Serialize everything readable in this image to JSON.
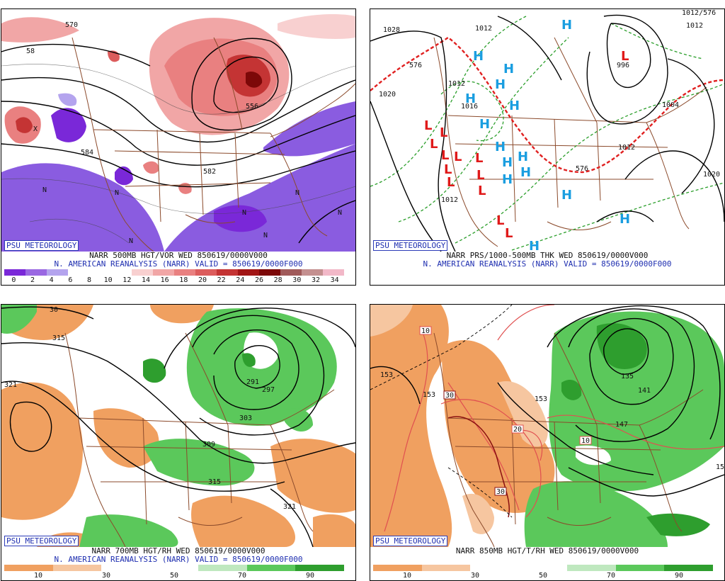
{
  "credit": "PSU METEOROLOGY",
  "colors": {
    "vort_scale": [
      "#7a28d8",
      "#9a68e2",
      "#b4a4ee",
      "#ffffff",
      "#ffffff",
      "#ffffff",
      "#f8d0d0",
      "#f1a6a6",
      "#e98080",
      "#dc5c5c",
      "#c43434",
      "#a21616",
      "#7c0808",
      "#a05a5a",
      "#c49090",
      "#f2b8c8"
    ],
    "brown_scale": [
      "#f0a060",
      "#f6c6a0",
      "#ffffff",
      "#ffffff",
      "#bfe8bf",
      "#5bc85b",
      "#2e9e2e"
    ]
  },
  "panels": [
    {
      "id": "vorticity",
      "caption1": "NARR 500MB HGT/VOR WED 850619/0000V000",
      "caption2": "N. AMERICAN REANALYSIS (NARR) VALID = 850619/0000F000",
      "scale_labels": [
        "0",
        "2",
        "4",
        "6",
        "8",
        "10",
        "12",
        "14",
        "16",
        "18",
        "20",
        "22",
        "24",
        "26",
        "28",
        "30",
        "32",
        "34"
      ],
      "contour_labels": [
        "570",
        "58",
        "556",
        "584",
        "582"
      ],
      "marks": [
        "X",
        "N",
        "N",
        "N",
        "N",
        "N",
        "N",
        "N"
      ]
    },
    {
      "id": "pressure",
      "caption1": "NARR PRS/1000-500MB THK WED 850619/0000V000",
      "caption2": "N. AMERICAN REANALYSIS (NARR) VALID = 850619/0000F000",
      "contour_labels": [
        "1028",
        "1012",
        "1012/576",
        "1012",
        "1012",
        "1020",
        "1016",
        "576",
        "996",
        "1004",
        "1012",
        "1020",
        "1012",
        "576"
      ],
      "highs": 15,
      "lows": 13
    },
    {
      "id": "rh700",
      "caption1": "NARR 700MB HGT/RH WED 850619/0000V000",
      "caption2": "N. AMERICAN REANALYSIS (NARR) VALID = 850619/0000F000",
      "scale_labels": [
        "10",
        "30",
        "50",
        "70",
        "90"
      ],
      "contour_labels": [
        "30",
        "315",
        "321",
        "291",
        "297",
        "303",
        "309",
        "315",
        "321"
      ]
    },
    {
      "id": "rh850",
      "caption1": "NARR 850MB HGT/T/RH WED 850619/0000V000",
      "scale_labels": [
        "10",
        "30",
        "50",
        "70",
        "90"
      ],
      "contour_labels": [
        "153",
        "153",
        "153",
        "135",
        "141",
        "147",
        "15",
        "10",
        "30",
        "20",
        "10",
        "30"
      ]
    }
  ]
}
